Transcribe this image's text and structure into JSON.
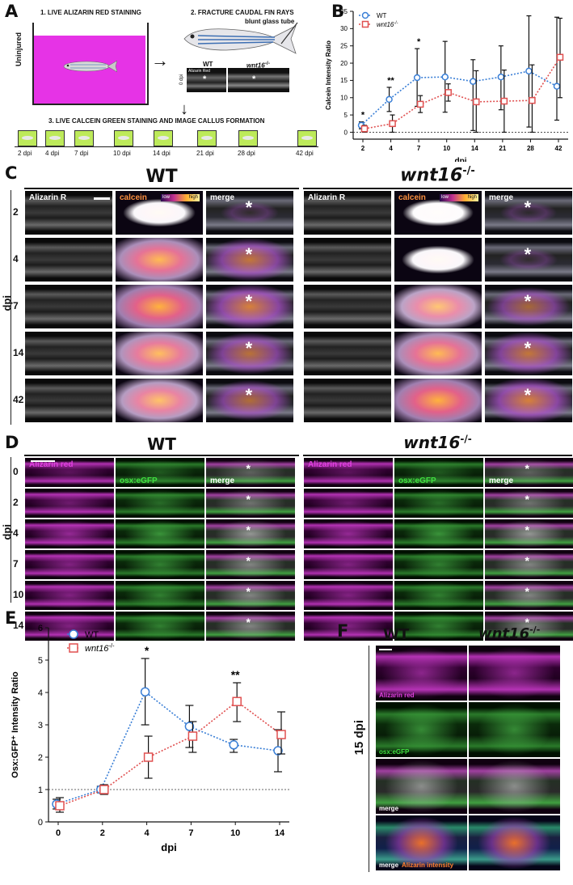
{
  "panels": {
    "a": "A",
    "b": "B",
    "c": "C",
    "d": "D",
    "e": "E",
    "f": "F"
  },
  "panelA": {
    "step1": "1. LIVE ALIZARIN RED STAINING",
    "step2": "2. FRACTURE CAUDAL FIN RAYS",
    "step3": "3. LIVE CALCEIN GREEN STAINING AND IMAGE CALLUS FORMATION",
    "uninjured": "Uninjured",
    "tube": "blunt glass tube",
    "wt": "WT",
    "mut": "wnt16",
    "mut_sup": "-/-",
    "dpi0": "0 dpi",
    "alizarin_tag": "Alizarin Red",
    "timeline": [
      "2 dpi",
      "4 dpi",
      "7 dpi",
      "10 dpi",
      "14 dpi",
      "21 dpi",
      "28 dpi",
      "42 dpi"
    ],
    "colors": {
      "tank": "#e633e6",
      "green": "#bdea5a"
    }
  },
  "panelC": {
    "wt_title": "WT",
    "mut_title": "wnt16",
    "mut_sup": "-/-",
    "rowaxis": "dpi",
    "rows": [
      "2",
      "4",
      "7",
      "14",
      "42"
    ],
    "col_labels": [
      "Alizarin R",
      "calcein",
      "merge"
    ],
    "lut_low": "low",
    "lut_high": "high",
    "calcein_wt": [
      0.05,
      0.8,
      0.9,
      0.75,
      0.7
    ],
    "calcein_mut": [
      0.02,
      0.05,
      0.65,
      0.8,
      0.9
    ]
  },
  "panelD": {
    "wt_title": "WT",
    "mut_title": "wnt16",
    "mut_sup": "-/-",
    "rowaxis": "dpi",
    "rows": [
      "0",
      "2",
      "4",
      "7",
      "10",
      "14"
    ],
    "col_labels": [
      "Alizarin red",
      "osx:eGFP",
      "merge"
    ]
  },
  "panelF": {
    "wt": "WT",
    "mut": "wnt16",
    "mut_sup": "-/-",
    "rowaxis": "15 dpi",
    "rows": [
      "Alizarin red",
      "osx:eGFP",
      "merge",
      "merge"
    ],
    "intensity": "Alizarin intensity"
  },
  "chart_data": [
    {
      "type": "line",
      "ylabel": "Calcein Intensity Ratio",
      "xlabel": "dpi",
      "categories": [
        "2",
        "4",
        "7",
        "10",
        "14",
        "21",
        "28",
        "42"
      ],
      "ylim": [
        -2,
        35
      ],
      "yticks": [
        0,
        5,
        10,
        15,
        20,
        25,
        30,
        35
      ],
      "sig": [
        "*",
        "**",
        "*",
        "",
        "",
        "",
        "",
        ""
      ],
      "series": [
        {
          "name": "WT",
          "color": "#3a7fd6",
          "values": [
            2,
            9.5,
            15.8,
            16,
            14.7,
            16,
            17.7,
            13.3
          ],
          "err": [
            [
              1,
              3
            ],
            [
              6,
              13
            ],
            [
              7.5,
              24.2
            ],
            [
              5.8,
              26.3
            ],
            [
              0.5,
              21
            ],
            [
              6.5,
              25
            ],
            [
              1.5,
              33.7
            ],
            [
              3.5,
              33.3
            ]
          ]
        },
        {
          "name": "wnt16",
          "name_sup": "-/-",
          "color": "#e05050",
          "values": [
            1,
            2.5,
            8.1,
            11.5,
            8.8,
            9,
            9.2,
            21.7
          ],
          "err": [
            [
              0,
              2
            ],
            [
              0,
              5
            ],
            [
              5.7,
              10.6
            ],
            [
              9,
              14
            ],
            [
              0,
              17.8
            ],
            [
              0,
              18
            ],
            [
              0,
              19.5
            ],
            [
              10,
              33
            ]
          ]
        }
      ]
    },
    {
      "type": "line",
      "ylabel": "Osx:GFP⁺ Intensity Ratio",
      "xlabel": "dpi",
      "categories": [
        "0",
        "2",
        "4",
        "7",
        "10",
        "14"
      ],
      "ylim": [
        0,
        6
      ],
      "yticks": [
        0,
        1,
        2,
        3,
        4,
        5,
        6
      ],
      "sig": [
        "",
        "",
        "*",
        "",
        "**",
        ""
      ],
      "series": [
        {
          "name": "WT",
          "color": "#3a7fd6",
          "values": [
            0.55,
            1.0,
            4.02,
            2.95,
            2.38,
            2.2
          ],
          "err": [
            [
              0.4,
              0.7
            ],
            [
              0.9,
              1.1
            ],
            [
              3.0,
              5.05
            ],
            [
              2.3,
              3.6
            ],
            [
              2.15,
              2.55
            ],
            [
              1.55,
              2.85
            ]
          ]
        },
        {
          "name": "wnt16",
          "name_sup": "-/-",
          "color": "#e05050",
          "values": [
            0.5,
            1.0,
            2.0,
            2.65,
            3.72,
            2.7
          ],
          "err": [
            [
              0.3,
              0.75
            ],
            [
              0.85,
              1.15
            ],
            [
              1.35,
              2.65
            ],
            [
              2.15,
              3.1
            ],
            [
              3.1,
              4.3
            ],
            [
              2.1,
              3.4
            ]
          ]
        }
      ]
    }
  ]
}
